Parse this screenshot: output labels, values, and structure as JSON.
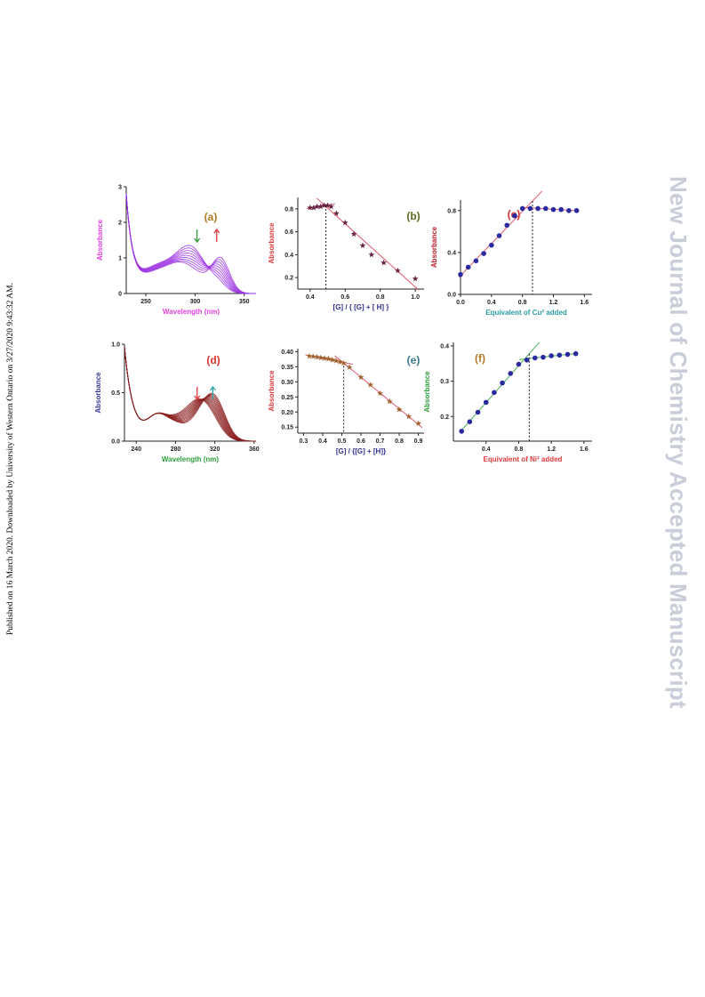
{
  "side_note": "Published on 16 March 2020. Downloaded by University of Western Ontario on 3/27/2020 9:43:32 AM.",
  "watermark": "New Journal of Chemistry Accepted Manuscript",
  "colors": {
    "violet": "#9b30e0",
    "maroon": "#8a1d1d",
    "star": "#6a2040",
    "dot": "#2a2aa0",
    "fitline": "#e0566a",
    "greenline": "#4caf50"
  },
  "chart_data": [
    {
      "id": "a",
      "type": "line",
      "tag": "(a)",
      "xlabel": "Wavelength (nm)",
      "ylabel": "Absorbance",
      "xlim": [
        230,
        362
      ],
      "ylim": [
        0,
        3
      ],
      "xticks": [
        "250",
        "300",
        "350"
      ],
      "yticks": [
        "0",
        "1",
        "2",
        "3"
      ],
      "series_count": 9,
      "arrows": [
        {
          "x": 302,
          "direction": "down",
          "color": "#2e9e3a"
        },
        {
          "x": 322,
          "direction": "up",
          "color": "#e0393c"
        }
      ]
    },
    {
      "id": "b",
      "type": "scatter",
      "tag": "(b)",
      "xlabel": "[G] / { [G] + [ H] }",
      "ylabel": "Absorbance",
      "xlim": [
        0.33,
        1.05
      ],
      "ylim": [
        0.1,
        0.9
      ],
      "xticks": [
        "0.4",
        "0.6",
        "0.8",
        "1.0"
      ],
      "yticks": [
        "0.2",
        "0.4",
        "0.6",
        "0.8"
      ],
      "x": [
        0.4,
        0.42,
        0.44,
        0.46,
        0.48,
        0.5,
        0.52,
        0.55,
        0.6,
        0.65,
        0.7,
        0.75,
        0.82,
        0.9,
        1.0
      ],
      "y": [
        0.81,
        0.81,
        0.82,
        0.82,
        0.83,
        0.83,
        0.82,
        0.76,
        0.68,
        0.58,
        0.48,
        0.4,
        0.33,
        0.26,
        0.19
      ],
      "dashed_x": 0.49
    },
    {
      "id": "c",
      "type": "scatter",
      "tag": "(c)",
      "xlabel": "Equivalent of Cu² added",
      "ylabel": "Absorbance",
      "xlim": [
        0,
        1.7
      ],
      "ylim": [
        0,
        0.9
      ],
      "xticks": [
        "0.0",
        "0.4",
        "0.8",
        "1.2",
        "1.6"
      ],
      "yticks": [
        "0.0",
        "0.4",
        "0.8"
      ],
      "x": [
        0.0,
        0.1,
        0.2,
        0.3,
        0.4,
        0.5,
        0.6,
        0.7,
        0.8,
        0.9,
        1.0,
        1.1,
        1.2,
        1.3,
        1.4,
        1.5
      ],
      "y": [
        0.19,
        0.26,
        0.32,
        0.39,
        0.47,
        0.56,
        0.66,
        0.75,
        0.82,
        0.82,
        0.82,
        0.82,
        0.81,
        0.81,
        0.8,
        0.8
      ],
      "dashed_x": 0.93
    },
    {
      "id": "d",
      "type": "line",
      "tag": "(d)",
      "xlabel": "Wavelength (nm)",
      "ylabel": "Absorbance",
      "xlim": [
        228,
        362
      ],
      "ylim": [
        0,
        1.0
      ],
      "xticks": [
        "240",
        "280",
        "320",
        "360"
      ],
      "yticks": [
        "0.0",
        "0.5",
        "1.0"
      ],
      "series_count": 12,
      "arrows": [
        {
          "x": 302,
          "direction": "down",
          "color": "#e0393c"
        },
        {
          "x": 318,
          "direction": "up",
          "color": "#2aa6a6"
        }
      ]
    },
    {
      "id": "e",
      "type": "scatter",
      "tag": "(e)",
      "xlabel": "[G] / {[G] + [H]}",
      "ylabel": "Absorbance",
      "xlim": [
        0.27,
        0.93
      ],
      "ylim": [
        0.13,
        0.41
      ],
      "xticks": [
        "0.3",
        "0.4",
        "0.5",
        "0.6",
        "0.7",
        "0.8",
        "0.9"
      ],
      "yticks": [
        "0.15",
        "0.20",
        "0.25",
        "0.30",
        "0.35",
        "0.40"
      ],
      "x": [
        0.33,
        0.35,
        0.37,
        0.39,
        0.41,
        0.43,
        0.45,
        0.47,
        0.49,
        0.51,
        0.54,
        0.6,
        0.65,
        0.7,
        0.75,
        0.8,
        0.85,
        0.9
      ],
      "y": [
        0.385,
        0.384,
        0.382,
        0.38,
        0.378,
        0.376,
        0.373,
        0.37,
        0.366,
        0.362,
        0.348,
        0.315,
        0.29,
        0.262,
        0.235,
        0.208,
        0.185,
        0.162
      ],
      "dashed_x": 0.51
    },
    {
      "id": "f",
      "type": "scatter",
      "tag": "(f)",
      "xlabel": "Equivalent of Ni² added",
      "ylabel": "Absorbance",
      "xlim": [
        0,
        1.7
      ],
      "ylim": [
        0.13,
        0.41
      ],
      "xticks": [
        "0.4",
        "0.8",
        "1.2",
        "1.6"
      ],
      "yticks": [
        "0.2",
        "0.3",
        "0.4"
      ],
      "x": [
        0.1,
        0.2,
        0.3,
        0.4,
        0.5,
        0.6,
        0.7,
        0.8,
        0.9,
        1.0,
        1.1,
        1.2,
        1.3,
        1.4,
        1.5
      ],
      "y": [
        0.158,
        0.185,
        0.212,
        0.24,
        0.268,
        0.295,
        0.322,
        0.348,
        0.36,
        0.366,
        0.368,
        0.372,
        0.374,
        0.376,
        0.378
      ],
      "dashed_x": 0.93
    }
  ]
}
